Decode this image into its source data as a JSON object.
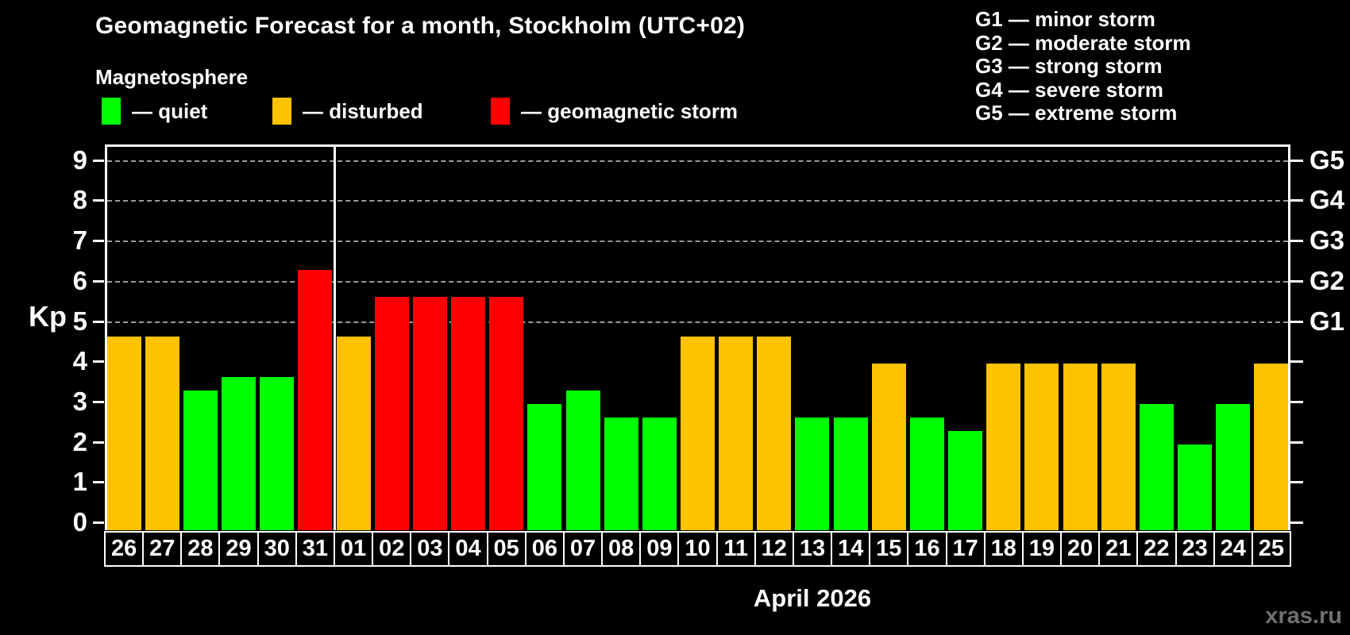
{
  "header": {
    "title": "Geomagnetic Forecast for a month, Stockholm (UTC+02)",
    "subtitle": "Magnetosphere"
  },
  "legend": {
    "quiet": "— quiet",
    "disturbed": "— disturbed",
    "storm": "— geomagnetic storm"
  },
  "g_legend": [
    "G1 — minor storm",
    "G2 — moderate storm",
    "G3 — strong storm",
    "G4 — severe storm",
    "G5 — extreme storm"
  ],
  "watermark": "xras.ru",
  "chart_data": {
    "type": "bar",
    "title": "Geomagnetic Forecast for a month, Stockholm (UTC+02)",
    "subtitle": "Magnetosphere",
    "ylabel": "Kp",
    "xlabel": "April 2026",
    "ylim": [
      0,
      9.4
    ],
    "yticks": [
      0,
      1,
      2,
      3,
      4,
      5,
      6,
      7,
      8,
      9
    ],
    "gridlines_at": [
      5,
      6,
      7,
      8,
      9
    ],
    "grid": "dashed, horizontal, at Kp 5-9 only",
    "right_axis_labels": [
      {
        "label": "G1",
        "value": 5
      },
      {
        "label": "G2",
        "value": 6
      },
      {
        "label": "G3",
        "value": 7
      },
      {
        "label": "G4",
        "value": 8
      },
      {
        "label": "G5",
        "value": 9
      }
    ],
    "categories": [
      "26",
      "27",
      "28",
      "29",
      "30",
      "31",
      "01",
      "02",
      "03",
      "04",
      "05",
      "06",
      "07",
      "08",
      "09",
      "10",
      "11",
      "12",
      "13",
      "14",
      "15",
      "16",
      "17",
      "18",
      "19",
      "20",
      "21",
      "22",
      "23",
      "24",
      "25"
    ],
    "values": [
      4.67,
      4.67,
      3.33,
      3.67,
      3.67,
      6.33,
      4.67,
      5.67,
      5.67,
      5.67,
      5.67,
      3.0,
      3.33,
      2.67,
      2.67,
      4.67,
      4.67,
      4.67,
      2.67,
      2.67,
      4.0,
      2.67,
      2.33,
      4.0,
      4.0,
      4.0,
      4.0,
      3.0,
      2.0,
      3.0,
      4.0
    ],
    "statuses": [
      "disturbed",
      "disturbed",
      "quiet",
      "quiet",
      "quiet",
      "storm",
      "disturbed",
      "storm",
      "storm",
      "storm",
      "storm",
      "quiet",
      "quiet",
      "quiet",
      "quiet",
      "disturbed",
      "disturbed",
      "disturbed",
      "quiet",
      "quiet",
      "disturbed",
      "quiet",
      "quiet",
      "disturbed",
      "disturbed",
      "disturbed",
      "disturbed",
      "quiet",
      "quiet",
      "quiet",
      "disturbed"
    ],
    "colors": {
      "quiet": "#00ff00",
      "disturbed": "#ffc200",
      "storm": "#ff0000"
    },
    "month_separator_after_index": 5,
    "legend_position": "top-left",
    "notes": "Days 26-31 belong to previous month (March), separated by vertical line; G1-G5 storm scale on right axis"
  }
}
